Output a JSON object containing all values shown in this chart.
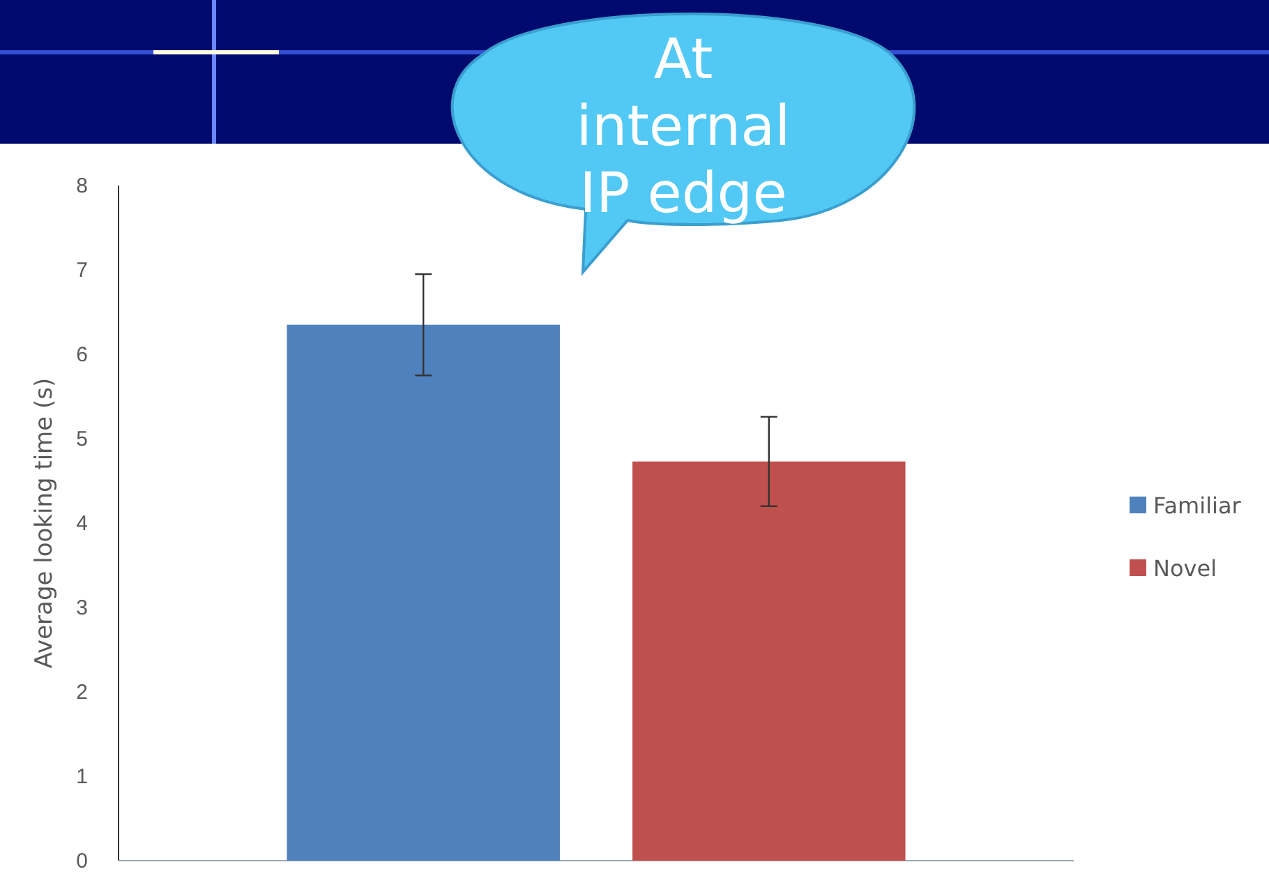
{
  "chart_data": {
    "type": "bar",
    "ylabel": "Average looking time (s)",
    "categories": [
      null
    ],
    "series": [
      {
        "name": "Familiar",
        "color": "#4f81bd",
        "values": [
          6.35
        ],
        "errors": [
          0.6
        ]
      },
      {
        "name": "Novel",
        "color": "#c0504d",
        "values": [
          4.73
        ],
        "errors": [
          0.53
        ]
      }
    ],
    "ylim": [
      0,
      8
    ],
    "yticks": [
      0,
      1,
      2,
      3,
      4,
      5,
      6,
      7,
      8
    ],
    "grid": false,
    "legend": "right",
    "annotations": [
      "At internal IP edge"
    ]
  }
}
